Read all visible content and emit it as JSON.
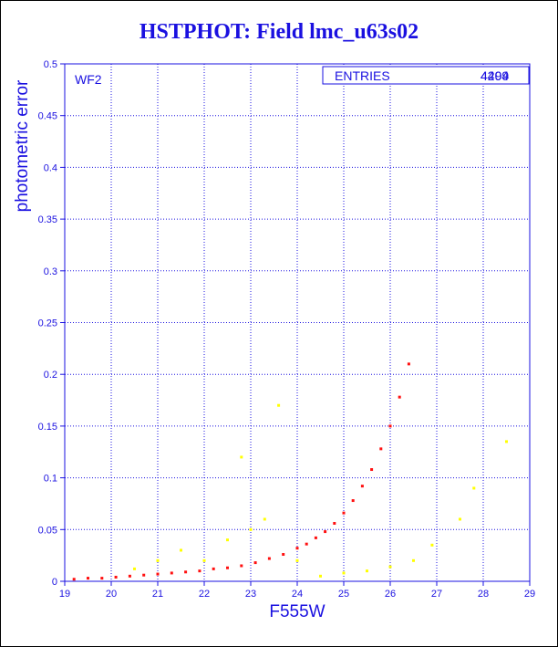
{
  "title": "HSTPHOT: Field lmc_u63s02",
  "colors": {
    "axis": "#1a10e0",
    "main": "#ff1010",
    "other": "#ffff00"
  },
  "stats_box": {
    "label": "ENTRIES",
    "value": "4494",
    "value_overstrike": "4209"
  },
  "chart_data": {
    "type": "scatter",
    "title": "HSTPHOT: Field lmc_u63s02",
    "xlabel": "F555W",
    "ylabel": "photometric error",
    "panel_label": "WF2",
    "xlim": [
      19,
      29
    ],
    "ylim": [
      0,
      0.5
    ],
    "xticks": [
      "19",
      "20",
      "21",
      "22",
      "23",
      "24",
      "25",
      "26",
      "27",
      "28",
      "29"
    ],
    "yticks": [
      "0",
      "0.05",
      "0.1",
      "0.15",
      "0.2",
      "0.25",
      "0.3",
      "0.35",
      "0.4",
      "0.45",
      "0.5"
    ],
    "grid": true,
    "series": [
      {
        "color": "#ff1010",
        "x": [
          19.2,
          19.5,
          19.8,
          20.1,
          20.4,
          20.7,
          21.0,
          21.3,
          21.6,
          21.9,
          22.2,
          22.5,
          22.8,
          23.1,
          23.4,
          23.7,
          24.0,
          24.2,
          24.4,
          24.6,
          24.8,
          25.0,
          25.2,
          25.4,
          25.6,
          25.8,
          26.0,
          26.2,
          26.4
        ],
        "y": [
          0.002,
          0.003,
          0.003,
          0.004,
          0.005,
          0.006,
          0.007,
          0.008,
          0.009,
          0.01,
          0.012,
          0.013,
          0.015,
          0.018,
          0.022,
          0.026,
          0.032,
          0.036,
          0.042,
          0.048,
          0.056,
          0.066,
          0.078,
          0.092,
          0.108,
          0.128,
          0.15,
          0.178,
          0.21
        ]
      },
      {
        "color": "#ffff00",
        "x": [
          20.5,
          21.0,
          21.5,
          22.0,
          22.5,
          22.8,
          23.0,
          23.3,
          23.6,
          24.0,
          24.5,
          25.0,
          25.5,
          26.0,
          26.5,
          26.9,
          27.5,
          27.8,
          28.5
        ],
        "y": [
          0.012,
          0.02,
          0.03,
          0.02,
          0.04,
          0.12,
          0.05,
          0.06,
          0.17,
          0.02,
          0.005,
          0.008,
          0.01,
          0.014,
          0.02,
          0.035,
          0.06,
          0.09,
          0.135
        ]
      }
    ]
  }
}
